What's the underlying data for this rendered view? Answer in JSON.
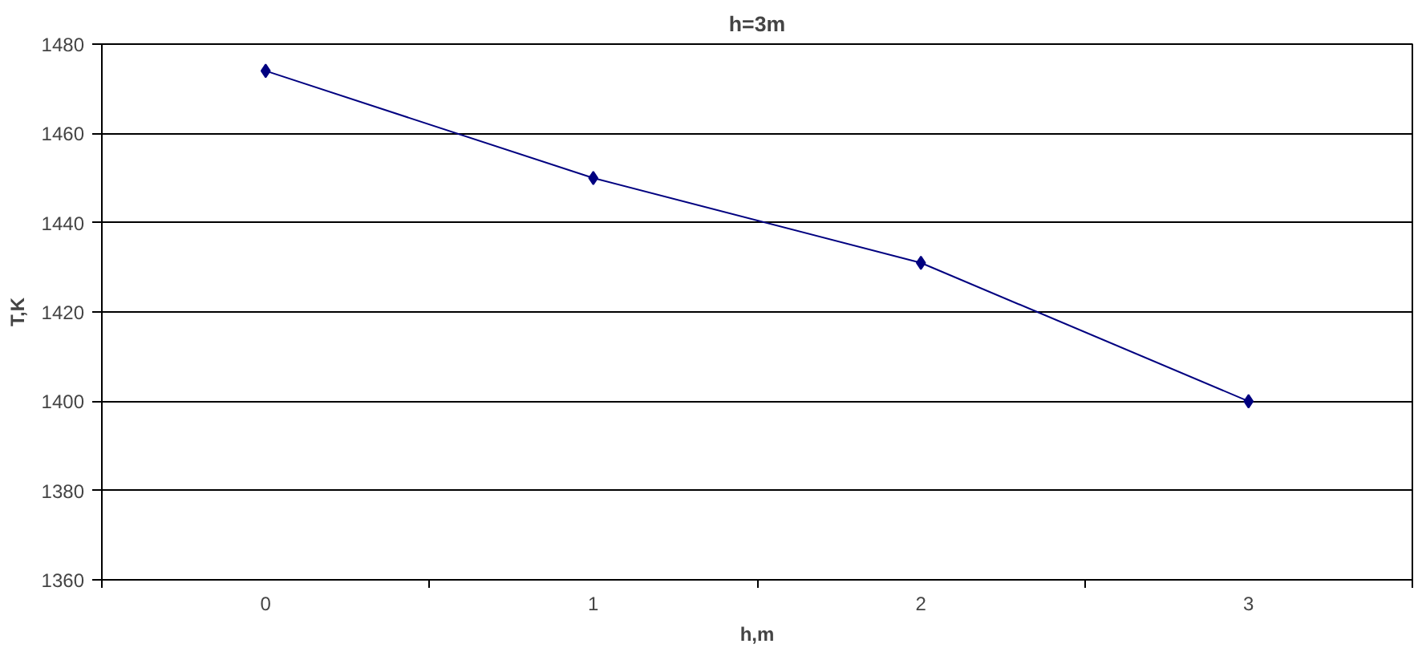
{
  "chart_data": {
    "type": "line",
    "title": "h=3m",
    "xlabel": "h,m",
    "ylabel": "T,K",
    "categories": [
      "0",
      "1",
      "2",
      "3"
    ],
    "series": [
      {
        "color": "#000080",
        "values": [
          1474,
          1450,
          1431,
          1400
        ]
      }
    ],
    "ylim": [
      1360,
      1480
    ],
    "yticks": [
      1360,
      1380,
      1400,
      1420,
      1440,
      1460,
      1480
    ],
    "grid": "y",
    "marker": "diamond",
    "line_style": "solid"
  }
}
